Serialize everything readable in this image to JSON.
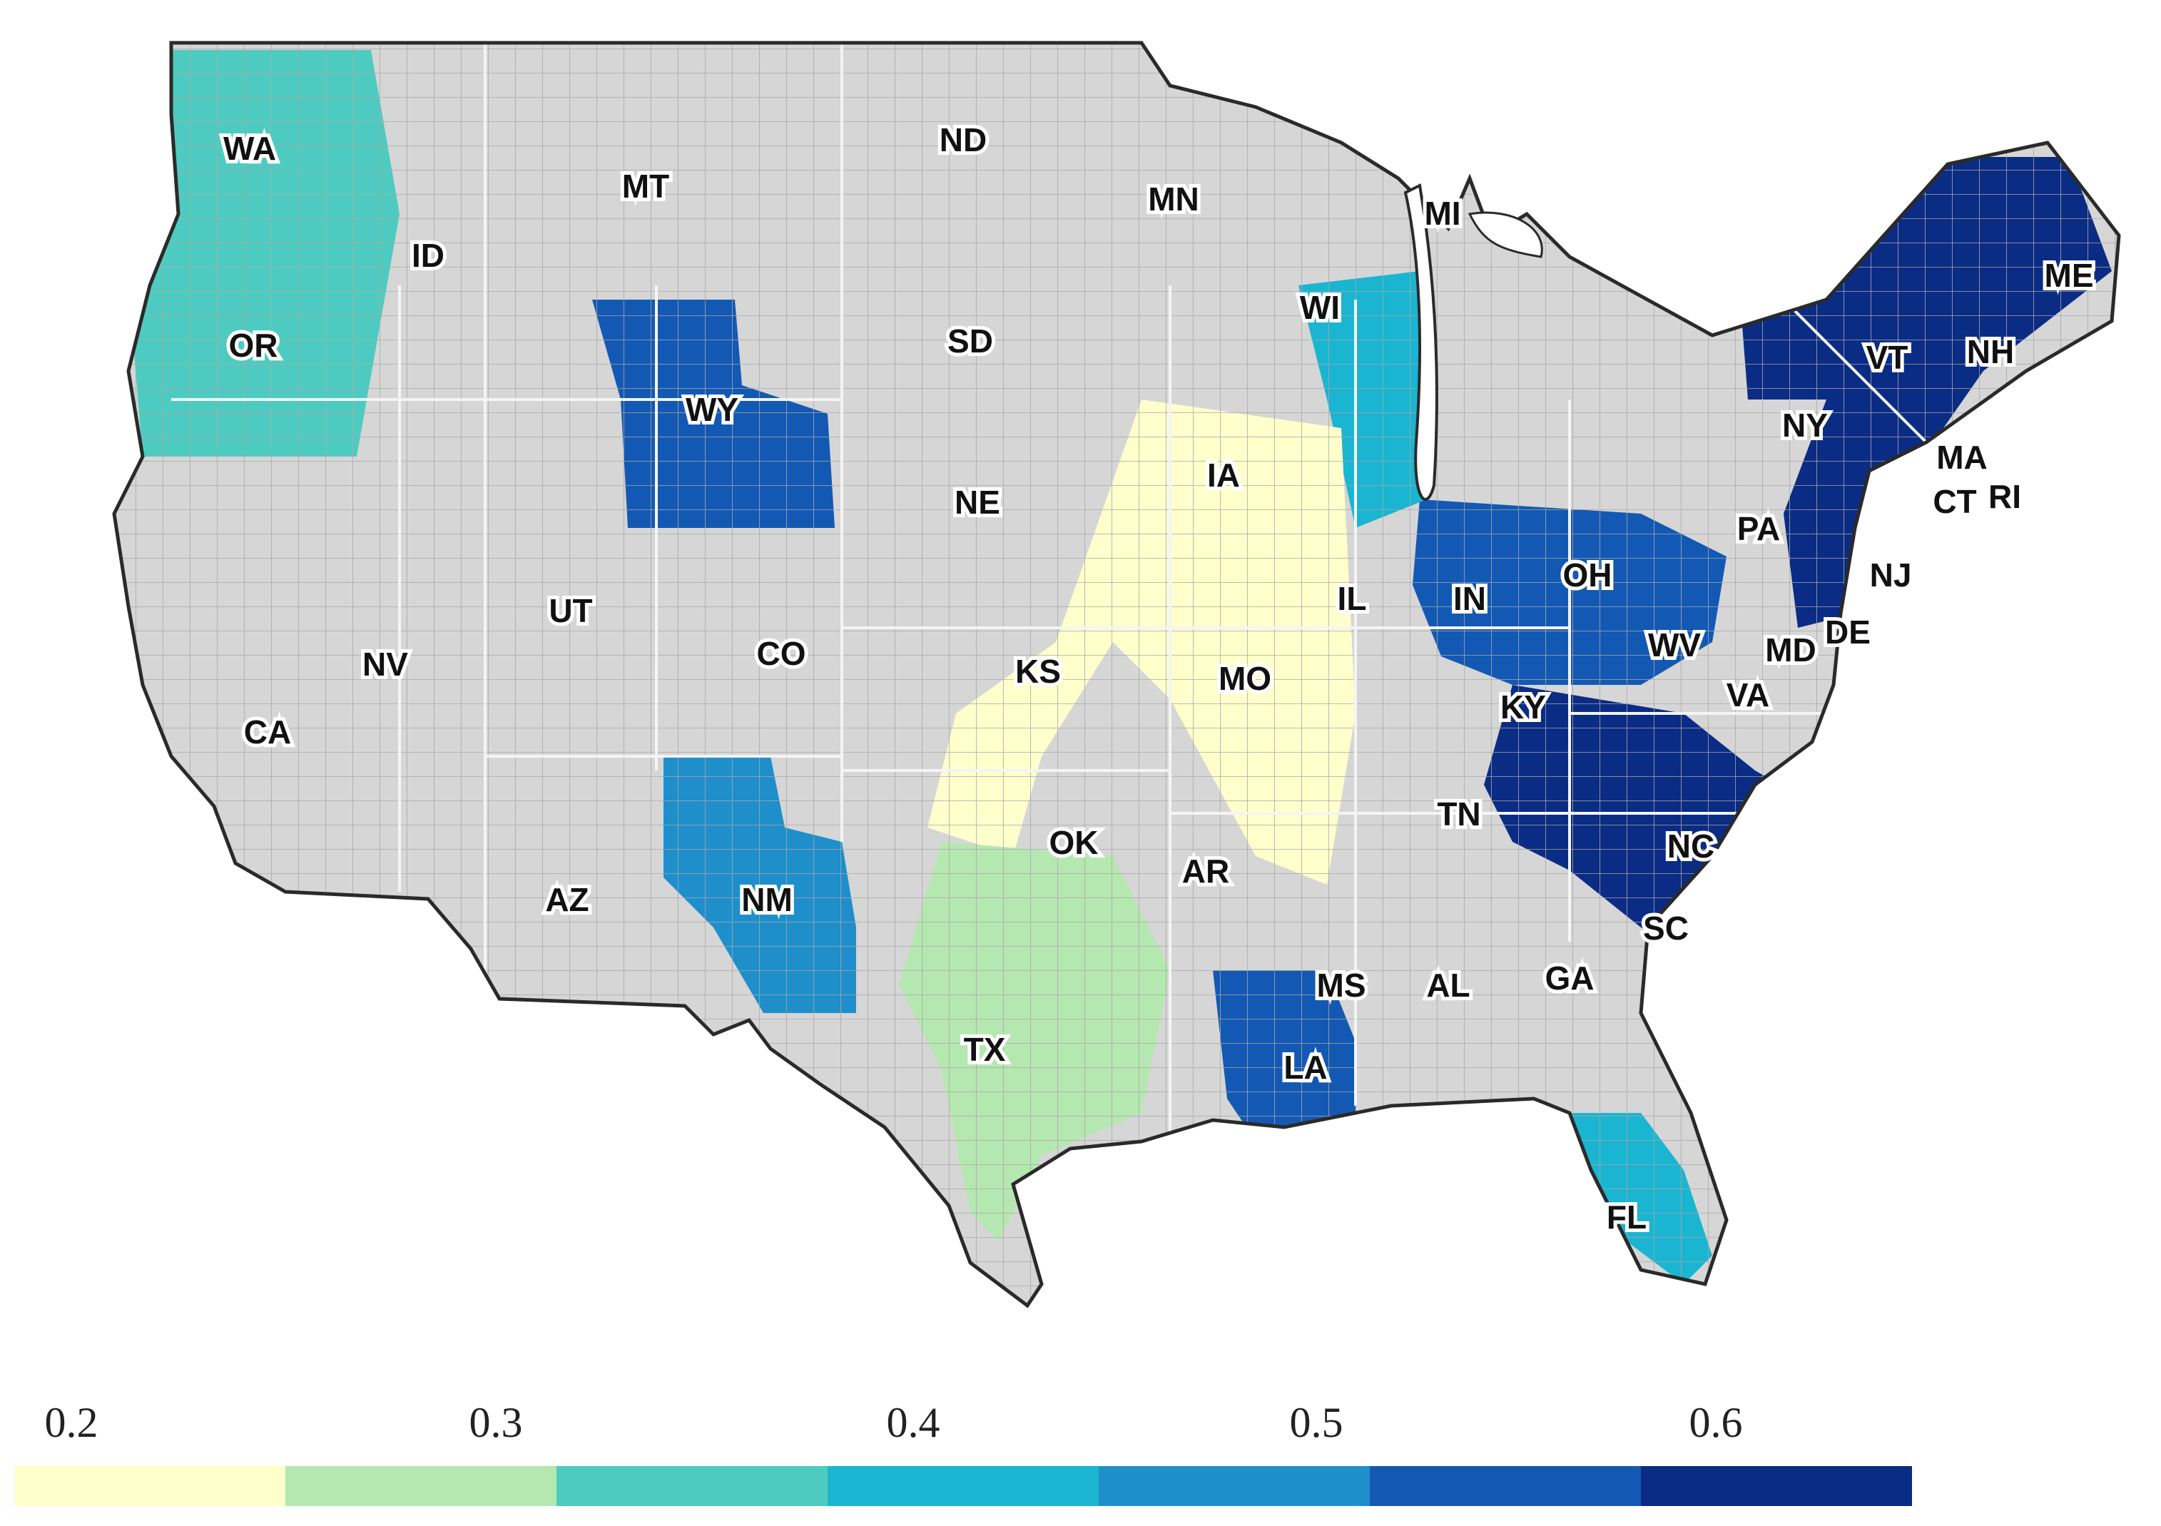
{
  "map": {
    "region": "contiguous-united-states",
    "unit_style": "county-choropleth",
    "land_color": "#d6d6d6",
    "border_color": "#9a9a9a",
    "state_labels": [
      "WA",
      "OR",
      "CA",
      "ID",
      "NV",
      "MT",
      "WY",
      "UT",
      "AZ",
      "CO",
      "NM",
      "ND",
      "SD",
      "NE",
      "KS",
      "OK",
      "TX",
      "MN",
      "IA",
      "MO",
      "AR",
      "LA",
      "WI",
      "IL",
      "MI",
      "IN",
      "OH",
      "KY",
      "TN",
      "MS",
      "AL",
      "GA",
      "FL",
      "SC",
      "NC",
      "VA",
      "WV",
      "PA",
      "NY",
      "VT",
      "NH",
      "ME",
      "MA",
      "CT",
      "RI",
      "NJ",
      "DE",
      "MD"
    ],
    "regions": [
      {
        "name": "northeast",
        "value": 0.62
      },
      {
        "name": "appalachian-carolinas",
        "value": 0.57
      },
      {
        "name": "ohio-indiana",
        "value": 0.52
      },
      {
        "name": "wyoming",
        "value": 0.5
      },
      {
        "name": "new-mexico",
        "value": 0.48
      },
      {
        "name": "louisiana",
        "value": 0.55
      },
      {
        "name": "upper-midwest-lakes",
        "value": 0.38
      },
      {
        "name": "pacific-northwest",
        "value": 0.33
      },
      {
        "name": "central-plains-corn-belt",
        "value": 0.22
      },
      {
        "name": "southern-plains",
        "value": 0.28
      },
      {
        "name": "florida",
        "value": 0.4
      }
    ]
  },
  "legend": {
    "tick_labels": [
      "0.2",
      "0.3",
      "0.4",
      "0.5",
      "0.6"
    ],
    "bins": [
      {
        "color": "#ffffcc"
      },
      {
        "color": "#b5e8b0"
      },
      {
        "color": "#4ecbc0"
      },
      {
        "color": "#1ab5d1"
      },
      {
        "color": "#1f8fcc"
      },
      {
        "color": "#1359b3"
      },
      {
        "color": "#0b2c84"
      }
    ]
  }
}
